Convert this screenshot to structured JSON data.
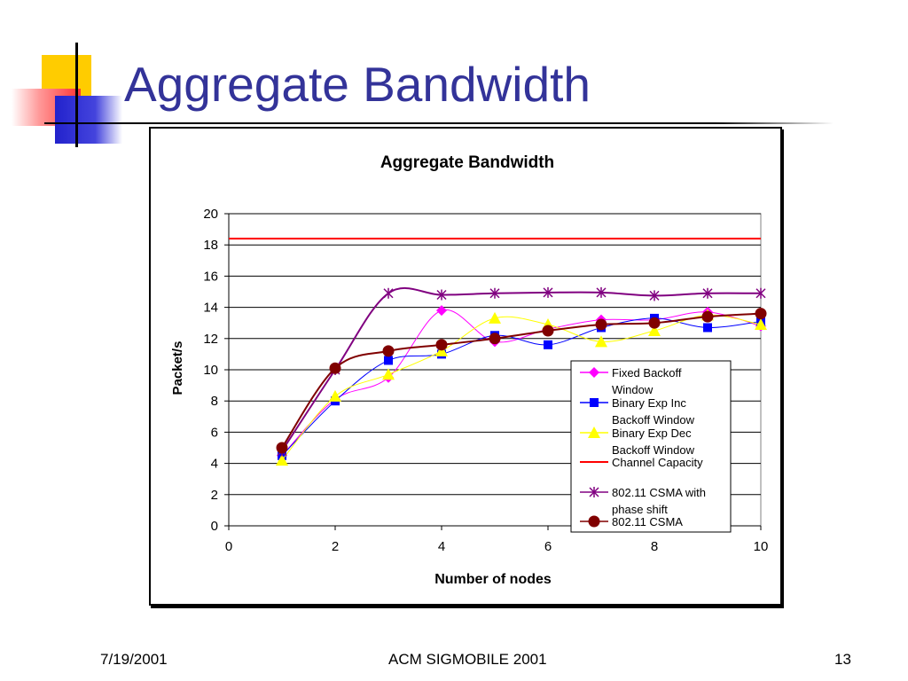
{
  "slide": {
    "title": "Aggregate Bandwidth",
    "footer_date": "7/19/2001",
    "footer_center": "ACM SIGMOBILE 2001",
    "footer_page": "13"
  },
  "colors": {
    "title": "#333399",
    "fixed_backoff": "#FF00FF",
    "binary_exp_inc": "#0000FF",
    "binary_exp_dec": "#FFFF00",
    "channel_capacity": "#FF0000",
    "csma_phase_shift": "#800080",
    "csma": "#800000"
  },
  "chart_data": {
    "type": "line",
    "title": "Aggregate Bandwidth",
    "xlabel": "Number of nodes",
    "ylabel": "Packet/s",
    "xlim": [
      0,
      10
    ],
    "ylim": [
      0,
      20
    ],
    "xticks": [
      0,
      2,
      4,
      6,
      8,
      10
    ],
    "yticks": [
      0,
      2,
      4,
      6,
      8,
      10,
      12,
      14,
      16,
      18,
      20
    ],
    "grid": "horizontal",
    "legend_position": "right-bottom",
    "x": [
      1,
      2,
      3,
      4,
      5,
      6,
      7,
      8,
      9,
      10
    ],
    "series": [
      {
        "name": "Fixed Backoff Window",
        "marker": "diamond",
        "color": "#FF00FF",
        "values": [
          4.5,
          8.1,
          9.5,
          13.8,
          11.8,
          12.6,
          13.2,
          13.2,
          13.7,
          12.8
        ]
      },
      {
        "name": "Binary Exp Inc Backoff Window",
        "marker": "square",
        "color": "#0000FF",
        "values": [
          4.5,
          8.0,
          10.6,
          11.0,
          12.2,
          11.6,
          12.7,
          13.3,
          12.7,
          13.1
        ]
      },
      {
        "name": "Binary Exp Dec Backoff Window",
        "marker": "triangle",
        "color": "#FFFF00",
        "values": [
          4.2,
          8.3,
          9.7,
          11.2,
          13.3,
          12.9,
          11.8,
          12.5,
          13.5,
          12.9
        ]
      },
      {
        "name": "Channel Capacity",
        "marker": "none",
        "color": "#FF0000",
        "values": [
          18.4,
          18.4,
          18.4,
          18.4,
          18.4,
          18.4,
          18.4,
          18.4,
          18.4,
          18.4
        ]
      },
      {
        "name": "802.11 CSMA with phase shift",
        "marker": "star",
        "color": "#800080",
        "values": [
          4.8,
          10.0,
          14.9,
          14.8,
          14.9,
          14.95,
          14.95,
          14.75,
          14.9,
          14.9
        ]
      },
      {
        "name": "802.11 CSMA",
        "marker": "circle",
        "color": "#800000",
        "values": [
          5.0,
          10.1,
          11.2,
          11.6,
          12.0,
          12.5,
          12.9,
          13.0,
          13.4,
          13.6
        ]
      }
    ]
  }
}
